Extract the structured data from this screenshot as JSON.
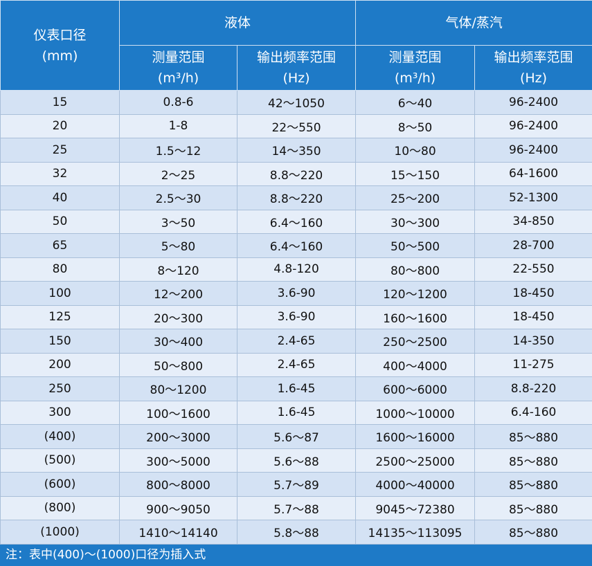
{
  "header": {
    "diameter": "仪表口径",
    "diameter_unit": "(mm)",
    "liquid": "液体",
    "gas": "气体/蒸汽",
    "range": "测量范围",
    "range_unit": "(m³/h)",
    "freq": "输出频率范围",
    "freq_unit": "(Hz)"
  },
  "rows": [
    [
      "15",
      "0.8-6",
      "42～1050",
      "6～40",
      "96-2400"
    ],
    [
      "20",
      "1-8",
      "22～550",
      "8～50",
      "96-2400"
    ],
    [
      "25",
      "1.5～12",
      "14～350",
      "10～80",
      "96-2400"
    ],
    [
      "32",
      "2～25",
      "8.8～220",
      "15～150",
      "64-1600"
    ],
    [
      "40",
      "2.5～30",
      "8.8～220",
      "25～200",
      "52-1300"
    ],
    [
      "50",
      "3～50",
      "6.4～160",
      "30～300",
      "34-850"
    ],
    [
      "65",
      "5～80",
      "6.4～160",
      "50～500",
      "28-700"
    ],
    [
      "80",
      "8～120",
      "4.8-120",
      "80～800",
      "22-550"
    ],
    [
      "100",
      "12～200",
      "3.6-90",
      "120～1200",
      "18-450"
    ],
    [
      "125",
      "20～300",
      "3.6-90",
      "160～1600",
      "18-450"
    ],
    [
      "150",
      "30～400",
      "2.4-65",
      "250～2500",
      "14-350"
    ],
    [
      "200",
      "50～800",
      "2.4-65",
      "400～4000",
      "11-275"
    ],
    [
      "250",
      "80～1200",
      "1.6-45",
      "600～6000",
      "8.8-220"
    ],
    [
      "300",
      "100～1600",
      "1.6-45",
      "1000～10000",
      "6.4-160"
    ],
    [
      "(400)",
      "200～3000",
      "5.6～87",
      "1600～16000",
      "85～880"
    ],
    [
      "(500)",
      "300～5000",
      "5.6～88",
      "2500～25000",
      "85～880"
    ],
    [
      "(600)",
      "800～8000",
      "5.7～89",
      "4000～40000",
      "85～880"
    ],
    [
      "(800)",
      "900～9050",
      "5.7～88",
      "9045～72380",
      "85～880"
    ],
    [
      "(1000)",
      "1410～14140",
      "5.8～88",
      "14135～113095",
      "85～880"
    ]
  ],
  "footer": "注：表中(400)～(1000)口径为插入式"
}
